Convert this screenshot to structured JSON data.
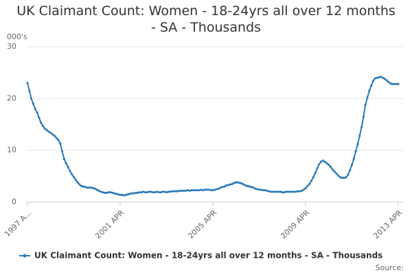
{
  "chart_data": {
    "type": "line",
    "title": "UK Claimant Count: Women - 18-24yrs all over 12 months - SA - Thousands",
    "y_label": "000's",
    "source": "Source:",
    "categories": [
      "1997 A...",
      null,
      null,
      null,
      null,
      null,
      null,
      null,
      null,
      null,
      null,
      null,
      null,
      null,
      null,
      null,
      null,
      null,
      null,
      null,
      null,
      null,
      null,
      null,
      null,
      null,
      null,
      null,
      null,
      null,
      null,
      null,
      null,
      null,
      null,
      null,
      null,
      null,
      null,
      null,
      null,
      null,
      null,
      null,
      null,
      null,
      null,
      null,
      "2001 APR",
      null,
      null,
      null,
      null,
      null,
      null,
      null,
      null,
      null,
      null,
      null,
      null,
      null,
      null,
      null,
      null,
      null,
      null,
      null,
      null,
      null,
      null,
      null,
      null,
      null,
      null,
      null,
      null,
      null,
      null,
      null,
      null,
      null,
      null,
      null,
      null,
      null,
      null,
      null,
      null,
      null,
      null,
      null,
      null,
      null,
      null,
      null,
      "2005 APR",
      null,
      null,
      null,
      null,
      null,
      null,
      null,
      null,
      null,
      null,
      null,
      null,
      null,
      null,
      null,
      null,
      null,
      null,
      null,
      null,
      null,
      null,
      null,
      null,
      null,
      null,
      null,
      null,
      null,
      null,
      null,
      null,
      null,
      null,
      null,
      null,
      null,
      null,
      null,
      null,
      null,
      null,
      null,
      null,
      null,
      null,
      null,
      "2009 APR",
      null,
      null,
      null,
      null,
      null,
      null,
      null,
      null,
      null,
      null,
      null,
      null,
      null,
      null,
      null,
      null,
      null,
      null,
      null,
      null,
      null,
      null,
      null,
      null,
      null,
      null,
      null,
      null,
      null,
      null,
      null,
      null,
      null,
      null,
      null,
      null,
      null,
      null,
      null,
      null,
      null,
      null,
      null,
      null,
      null,
      null,
      null,
      "2013 APR"
    ],
    "series": [
      {
        "name": "UK Claimant Count: Women - 18-24yrs all over 12 months - SA - Thousands",
        "color": "#2a7ab9",
        "values": [
          23.0,
          21.5,
          20.0,
          19.0,
          18.0,
          17.3,
          16.3,
          15.3,
          14.7,
          14.2,
          13.9,
          13.6,
          13.4,
          13.1,
          12.8,
          12.4,
          12.0,
          11.3,
          9.8,
          8.3,
          7.5,
          6.8,
          6.0,
          5.4,
          4.8,
          4.3,
          3.8,
          3.4,
          3.1,
          3.0,
          2.9,
          2.8,
          2.8,
          2.8,
          2.7,
          2.6,
          2.4,
          2.2,
          2.0,
          1.9,
          1.8,
          1.8,
          1.9,
          1.9,
          1.8,
          1.7,
          1.6,
          1.5,
          1.4,
          1.4,
          1.3,
          1.4,
          1.5,
          1.6,
          1.7,
          1.7,
          1.8,
          1.8,
          1.9,
          1.9,
          2.0,
          1.9,
          1.9,
          2.0,
          2.0,
          1.9,
          1.9,
          2.0,
          1.9,
          1.9,
          2.0,
          2.0,
          1.9,
          2.0,
          2.0,
          2.1,
          2.1,
          2.1,
          2.1,
          2.2,
          2.2,
          2.2,
          2.2,
          2.3,
          2.2,
          2.3,
          2.3,
          2.3,
          2.3,
          2.3,
          2.4,
          2.3,
          2.4,
          2.4,
          2.4,
          2.3,
          2.3,
          2.4,
          2.5,
          2.6,
          2.8,
          2.9,
          3.0,
          3.2,
          3.3,
          3.4,
          3.5,
          3.7,
          3.8,
          3.8,
          3.7,
          3.6,
          3.4,
          3.2,
          3.1,
          3.0,
          2.9,
          2.8,
          2.6,
          2.5,
          2.4,
          2.4,
          2.3,
          2.3,
          2.2,
          2.1,
          2.0,
          2.0,
          2.0,
          2.0,
          2.0,
          2.0,
          1.9,
          1.9,
          2.0,
          2.0,
          2.0,
          2.0,
          2.0,
          2.0,
          2.1,
          2.1,
          2.2,
          2.4,
          2.7,
          3.1,
          3.5,
          4.1,
          4.8,
          5.6,
          6.5,
          7.3,
          7.8,
          8.0,
          7.8,
          7.5,
          7.2,
          6.8,
          6.3,
          5.9,
          5.5,
          5.1,
          4.8,
          4.7,
          4.7,
          4.8,
          5.3,
          6.2,
          7.2,
          8.4,
          9.8,
          11.2,
          12.8,
          14.5,
          16.5,
          18.8,
          20.2,
          21.5,
          22.5,
          23.4,
          23.9,
          24.0,
          24.1,
          24.2,
          24.0,
          23.8,
          23.5,
          23.2,
          22.9,
          22.8,
          22.8,
          22.8,
          22.8
        ]
      }
    ],
    "ylim": [
      0,
      30
    ],
    "yticks": [
      0,
      10,
      20,
      30
    ],
    "grid": true,
    "legend": "bottom"
  }
}
